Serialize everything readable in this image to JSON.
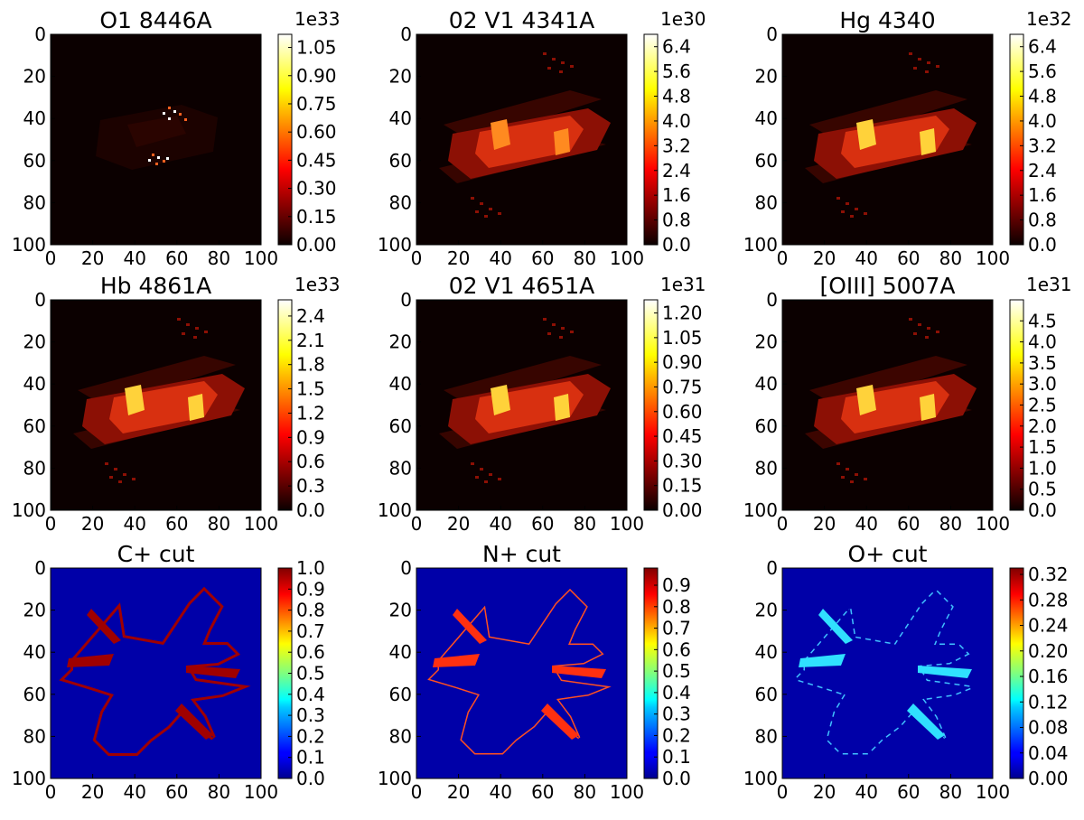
{
  "chart_data": [
    {
      "type": "heatmap",
      "title": "O1 8446A",
      "colormap": "hot",
      "xlim": [
        0,
        100
      ],
      "ylim": [
        100,
        0
      ],
      "xticks": [
        "0",
        "20",
        "40",
        "60",
        "80",
        "100"
      ],
      "yticks": [
        "0",
        "20",
        "40",
        "60",
        "80",
        "100"
      ],
      "colorbar": {
        "multiplier": "1e33",
        "min": 0,
        "max": 1.12,
        "ticks": [
          "0.00",
          "0.15",
          "0.30",
          "0.45",
          "0.60",
          "0.75",
          "0.90",
          "1.05"
        ]
      }
    },
    {
      "type": "heatmap",
      "title": "02 V1 4341A",
      "colormap": "hot",
      "xlim": [
        0,
        100
      ],
      "ylim": [
        100,
        0
      ],
      "xticks": [
        "0",
        "20",
        "40",
        "60",
        "80",
        "100"
      ],
      "yticks": [
        "0",
        "20",
        "40",
        "60",
        "80",
        "100"
      ],
      "colorbar": {
        "multiplier": "1e30",
        "min": 0,
        "max": 6.8,
        "ticks": [
          "0.0",
          "0.8",
          "1.6",
          "2.4",
          "3.2",
          "4.0",
          "4.8",
          "5.6",
          "6.4"
        ]
      }
    },
    {
      "type": "heatmap",
      "title": "Hg 4340",
      "colormap": "hot",
      "xlim": [
        0,
        100
      ],
      "ylim": [
        100,
        0
      ],
      "xticks": [
        "0",
        "20",
        "40",
        "60",
        "80",
        "100"
      ],
      "yticks": [
        "0",
        "20",
        "40",
        "60",
        "80",
        "100"
      ],
      "colorbar": {
        "multiplier": "1e32",
        "min": 0,
        "max": 6.8,
        "ticks": [
          "0.0",
          "0.8",
          "1.6",
          "2.4",
          "3.2",
          "4.0",
          "4.8",
          "5.6",
          "6.4"
        ]
      }
    },
    {
      "type": "heatmap",
      "title": "Hb 4861A",
      "colormap": "hot",
      "xlim": [
        0,
        100
      ],
      "ylim": [
        100,
        0
      ],
      "xticks": [
        "0",
        "20",
        "40",
        "60",
        "80",
        "100"
      ],
      "yticks": [
        "0",
        "20",
        "40",
        "60",
        "80",
        "100"
      ],
      "colorbar": {
        "multiplier": "1e33",
        "min": 0,
        "max": 2.6,
        "ticks": [
          "0.0",
          "0.3",
          "0.6",
          "0.9",
          "1.2",
          "1.5",
          "1.8",
          "2.1",
          "2.4"
        ]
      }
    },
    {
      "type": "heatmap",
      "title": "02 V1 4651A",
      "colormap": "hot",
      "xlim": [
        0,
        100
      ],
      "ylim": [
        100,
        0
      ],
      "xticks": [
        "0",
        "20",
        "40",
        "60",
        "80",
        "100"
      ],
      "yticks": [
        "0",
        "20",
        "40",
        "60",
        "80",
        "100"
      ],
      "colorbar": {
        "multiplier": "1e31",
        "min": 0,
        "max": 1.28,
        "ticks": [
          "0.00",
          "0.15",
          "0.30",
          "0.45",
          "0.60",
          "0.75",
          "0.90",
          "1.05",
          "1.20"
        ]
      }
    },
    {
      "type": "heatmap",
      "title": "[OIII] 5007A",
      "colormap": "hot",
      "xlim": [
        0,
        100
      ],
      "ylim": [
        100,
        0
      ],
      "xticks": [
        "0",
        "20",
        "40",
        "60",
        "80",
        "100"
      ],
      "yticks": [
        "0",
        "20",
        "40",
        "60",
        "80",
        "100"
      ],
      "colorbar": {
        "multiplier": "1e31",
        "min": 0,
        "max": 5.0,
        "ticks": [
          "0.0",
          "0.5",
          "1.0",
          "1.5",
          "2.0",
          "2.5",
          "3.0",
          "3.5",
          "4.0",
          "4.5"
        ]
      }
    },
    {
      "type": "heatmap",
      "title": "C+ cut",
      "colormap": "jet",
      "xlim": [
        0,
        100
      ],
      "ylim": [
        100,
        0
      ],
      "xticks": [
        "0",
        "20",
        "40",
        "60",
        "80",
        "100"
      ],
      "yticks": [
        "0",
        "20",
        "40",
        "60",
        "80",
        "100"
      ],
      "colorbar": {
        "multiplier": "",
        "min": 0,
        "max": 1.0,
        "ticks": [
          "0.0",
          "0.1",
          "0.2",
          "0.3",
          "0.4",
          "0.5",
          "0.6",
          "0.7",
          "0.8",
          "0.9",
          "1.0"
        ]
      }
    },
    {
      "type": "heatmap",
      "title": "N+ cut",
      "colormap": "jet",
      "xlim": [
        0,
        100
      ],
      "ylim": [
        100,
        0
      ],
      "xticks": [
        "0",
        "20",
        "40",
        "60",
        "80",
        "100"
      ],
      "yticks": [
        "0",
        "20",
        "40",
        "60",
        "80",
        "100"
      ],
      "colorbar": {
        "multiplier": "",
        "min": 0,
        "max": 0.98,
        "ticks": [
          "0.0",
          "0.1",
          "0.2",
          "0.3",
          "0.4",
          "0.5",
          "0.6",
          "0.7",
          "0.8",
          "0.9"
        ]
      }
    },
    {
      "type": "heatmap",
      "title": "O+ cut",
      "colormap": "jet",
      "xlim": [
        0,
        100
      ],
      "ylim": [
        100,
        0
      ],
      "xticks": [
        "0",
        "20",
        "40",
        "60",
        "80",
        "100"
      ],
      "yticks": [
        "0",
        "20",
        "40",
        "60",
        "80",
        "100"
      ],
      "colorbar": {
        "multiplier": "",
        "min": 0,
        "max": 0.33,
        "ticks": [
          "0.00",
          "0.04",
          "0.08",
          "0.12",
          "0.16",
          "0.20",
          "0.24",
          "0.28",
          "0.32"
        ]
      }
    }
  ]
}
